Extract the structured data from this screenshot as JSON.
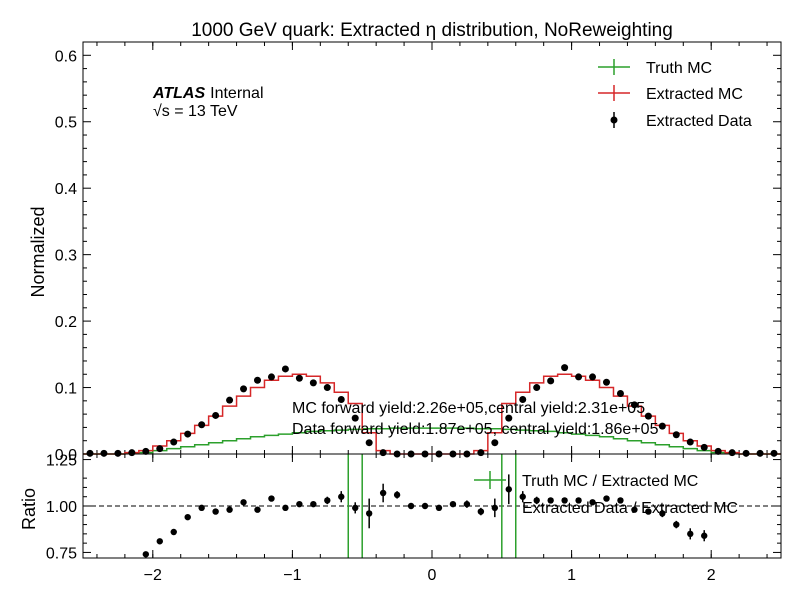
{
  "chart_data": {
    "type": "line",
    "title": "1000 GeV quark: Extracted η distribution, NoReweighting",
    "atlas_label": "ATLAS",
    "atlas_status": "Internal",
    "energy_label": "√s = 13 TeV",
    "ylabel": "Normalized",
    "ratio_ylabel": "Ratio",
    "xlim": [
      -2.5,
      2.5
    ],
    "ylim": [
      0,
      0.62
    ],
    "ratio_ylim": [
      0.72,
      1.28
    ],
    "x_ticks": [
      -2,
      -1,
      0,
      1,
      2
    ],
    "x_tick_labels": [
      "−2",
      "−1",
      "0",
      "1",
      "2"
    ],
    "y_ticks": [
      0,
      0.1,
      0.2,
      0.3,
      0.4,
      0.5,
      0.6
    ],
    "y_tick_labels": [
      "0.0",
      "0.1",
      "0.2",
      "0.3",
      "0.4",
      "0.5",
      "0.6"
    ],
    "ratio_y_ticks": [
      0.75,
      1.0,
      1.25
    ],
    "ratio_y_tick_labels": [
      "0.75",
      "1.00",
      "1.25"
    ],
    "legend": {
      "placement": "top-right",
      "entries": [
        "Truth MC",
        "Extracted MC",
        "Extracted Data"
      ]
    },
    "ratio_legend": {
      "placement": "top-right",
      "entries": [
        "Truth MC / Extracted MC",
        "Extracted Data / Extracted MC"
      ]
    },
    "annotations": [
      "MC forward yield:2.26e+05,central yield:2.31e+05",
      "Data forward yield:1.87e+05, central yield:1.86e+05"
    ],
    "colors": {
      "truth_mc": "#2ca02c",
      "extracted_mc": "#d62728",
      "data": "#000000"
    },
    "bin_width": 0.1,
    "x": [
      -2.45,
      -2.35,
      -2.25,
      -2.15,
      -2.05,
      -1.95,
      -1.85,
      -1.75,
      -1.65,
      -1.55,
      -1.45,
      -1.35,
      -1.25,
      -1.15,
      -1.05,
      -0.95,
      -0.85,
      -0.75,
      -0.65,
      -0.55,
      -0.45,
      -0.35,
      -0.25,
      -0.15,
      -0.05,
      0.05,
      0.15,
      0.25,
      0.35,
      0.45,
      0.55,
      0.65,
      0.75,
      0.85,
      0.95,
      1.05,
      1.15,
      1.25,
      1.35,
      1.45,
      1.55,
      1.65,
      1.75,
      1.85,
      1.95,
      2.05,
      2.15,
      2.25,
      2.35,
      2.45
    ],
    "series": [
      {
        "name": "Truth MC",
        "values": [
          0,
          0,
          0,
          0.001,
          0.002,
          0.005,
          0.008,
          0.011,
          0.014,
          0.017,
          0.02,
          0.023,
          0.026,
          0.028,
          0.03,
          0.032,
          0.034,
          0.035,
          0.036,
          0.037,
          0.038,
          0.038,
          0.039,
          0.039,
          0.039,
          0.039,
          0.039,
          0.039,
          0.038,
          0.038,
          0.037,
          0.036,
          0.035,
          0.034,
          0.032,
          0.03,
          0.028,
          0.026,
          0.023,
          0.02,
          0.017,
          0.014,
          0.011,
          0.008,
          0.005,
          0.002,
          0.001,
          0,
          0,
          0
        ]
      },
      {
        "name": "Extracted MC",
        "values": [
          0,
          0,
          0,
          0.002,
          0.005,
          0.012,
          0.02,
          0.031,
          0.043,
          0.057,
          0.072,
          0.087,
          0.1,
          0.111,
          0.117,
          0.12,
          0.117,
          0.107,
          0.093,
          0.076,
          0.032,
          0.005,
          0,
          0,
          0,
          0,
          0,
          0,
          0.005,
          0.032,
          0.076,
          0.093,
          0.107,
          0.117,
          0.12,
          0.117,
          0.111,
          0.1,
          0.087,
          0.072,
          0.057,
          0.043,
          0.031,
          0.02,
          0.012,
          0.005,
          0.002,
          0,
          0,
          0
        ]
      },
      {
        "name": "Extracted Data",
        "values": [
          0.001,
          0.001,
          0.001,
          0.002,
          0.004,
          0.008,
          0.018,
          0.03,
          0.044,
          0.058,
          0.081,
          0.098,
          0.111,
          0.116,
          0.128,
          0.114,
          0.107,
          0.1,
          0.082,
          0.054,
          0.017,
          0.002,
          0,
          0,
          0,
          0,
          0,
          0,
          0.002,
          0.017,
          0.054,
          0.082,
          0.1,
          0.11,
          0.13,
          0.116,
          0.116,
          0.108,
          0.091,
          0.074,
          0.057,
          0.042,
          0.029,
          0.018,
          0.01,
          0.004,
          0.002,
          0.001,
          0.001,
          0.001
        ],
        "errors": [
          0,
          0,
          0,
          0,
          0,
          0,
          0,
          0,
          0,
          0,
          0,
          0,
          0,
          0,
          0,
          0,
          0,
          0,
          0.003,
          0.004,
          0.004,
          0,
          0,
          0,
          0,
          0,
          0,
          0,
          0,
          0.004,
          0.004,
          0.003,
          0,
          0,
          0,
          0,
          0,
          0,
          0,
          0,
          0,
          0,
          0,
          0,
          0,
          0,
          0,
          0,
          0,
          0
        ]
      }
    ],
    "ratio_series": [
      {
        "name": "Truth MC / Extracted MC",
        "x": [
          -0.6,
          -0.5,
          0.5,
          0.6
        ],
        "values": [
          1.0,
          1.0,
          1.0,
          1.0
        ]
      },
      {
        "name": "Extracted Data / Extracted MC",
        "x": [
          -2.05,
          -1.95,
          -1.85,
          -1.75,
          -1.65,
          -1.55,
          -1.45,
          -1.35,
          -1.25,
          -1.15,
          -1.05,
          -0.95,
          -0.85,
          -0.75,
          -0.65,
          -0.55,
          -0.45,
          -0.35,
          -0.25,
          -0.15,
          -0.05,
          0.05,
          0.15,
          0.25,
          0.35,
          0.45,
          0.55,
          0.65,
          0.75,
          0.85,
          0.95,
          1.05,
          1.15,
          1.25,
          1.35,
          1.45,
          1.55,
          1.65,
          1.75,
          1.85,
          1.95
        ],
        "values": [
          0.74,
          0.81,
          0.86,
          0.94,
          0.99,
          0.97,
          0.98,
          1.02,
          0.98,
          1.04,
          0.99,
          1.01,
          1.01,
          1.03,
          1.05,
          0.99,
          0.96,
          1.07,
          1.06,
          1.0,
          1.0,
          0.99,
          1.01,
          1.01,
          0.97,
          0.99,
          1.09,
          1.05,
          1.03,
          1.03,
          1.03,
          1.03,
          1.02,
          1.04,
          1.03,
          0.98,
          0.97,
          0.96,
          0.9,
          0.85,
          0.84
        ],
        "errors": [
          0.01,
          0.01,
          0.01,
          0.01,
          0.01,
          0.01,
          0.01,
          0.01,
          0.01,
          0.01,
          0.01,
          0.01,
          0.01,
          0.02,
          0.03,
          0.03,
          0.08,
          0.05,
          0.02,
          0.01,
          0.01,
          0.01,
          0.01,
          0.02,
          0.02,
          0.05,
          0.08,
          0.03,
          0.02,
          0.01,
          0.01,
          0.01,
          0.01,
          0.01,
          0.01,
          0.01,
          0.01,
          0.02,
          0.02,
          0.03,
          0.03
        ]
      }
    ]
  }
}
